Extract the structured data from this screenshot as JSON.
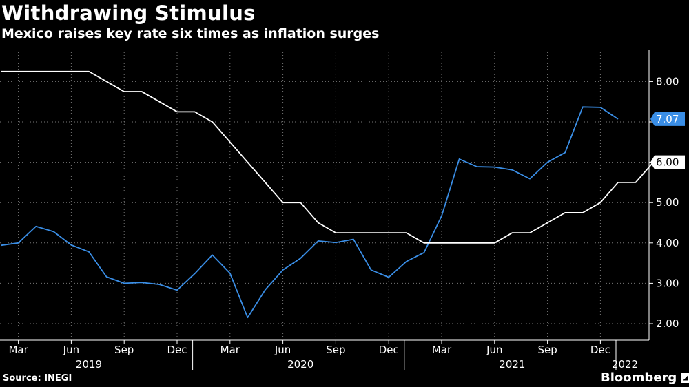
{
  "header": {
    "title": "Withdrawing Stimulus",
    "subtitle": "Mexico raises key rate six times as inflation surges"
  },
  "footer": {
    "source": "Source: INEGI",
    "logo": "Bloomberg"
  },
  "colors": {
    "background": "#000000",
    "inflation": "#3a8ee6",
    "rate": "#ffffff",
    "grid": "#666666"
  },
  "chart_data": {
    "type": "line",
    "title": "Withdrawing Stimulus",
    "subtitle": "Mexico raises key rate six times as inflation surges",
    "x_start": "2019-02",
    "x_end": "2022-02",
    "ylim": [
      1.7,
      8.8
    ],
    "yticks": [
      "2.00",
      "3.00",
      "4.00",
      "5.00",
      "6.00",
      "7.00",
      "8.00"
    ],
    "grid": true,
    "month_ticks": [
      "Mar",
      "Jun",
      "Sep",
      "Dec",
      "Mar",
      "Jun",
      "Sep",
      "Dec",
      "Mar",
      "Jun",
      "Sep",
      "Dec"
    ],
    "month_tick_dates": [
      "2019-03",
      "2019-06",
      "2019-09",
      "2019-12",
      "2020-03",
      "2020-06",
      "2020-09",
      "2020-12",
      "2021-03",
      "2021-06",
      "2021-09",
      "2021-12"
    ],
    "year_labels": [
      "2019",
      "2020",
      "2021",
      "2022"
    ],
    "year_label_dates": [
      "2019-07",
      "2020-07",
      "2021-07",
      "2022-01"
    ],
    "series": [
      {
        "color": "#3a8ee6",
        "last_label": "7.07",
        "x": [
          "2019-02",
          "2019-03",
          "2019-04",
          "2019-05",
          "2019-06",
          "2019-07",
          "2019-08",
          "2019-09",
          "2019-10",
          "2019-11",
          "2019-12",
          "2020-01",
          "2020-02",
          "2020-03",
          "2020-04",
          "2020-05",
          "2020-06",
          "2020-07",
          "2020-08",
          "2020-09",
          "2020-10",
          "2020-11",
          "2020-12",
          "2021-01",
          "2021-02",
          "2021-03",
          "2021-04",
          "2021-05",
          "2021-06",
          "2021-07",
          "2021-08",
          "2021-09",
          "2021-10",
          "2021-11",
          "2021-12",
          "2022-01"
        ],
        "values": [
          3.94,
          4.0,
          4.41,
          4.28,
          3.95,
          3.78,
          3.16,
          3.0,
          3.02,
          2.97,
          2.83,
          3.24,
          3.7,
          3.25,
          2.15,
          2.84,
          3.33,
          3.62,
          4.05,
          4.01,
          4.09,
          3.33,
          3.15,
          3.54,
          3.76,
          4.67,
          6.08,
          5.89,
          5.88,
          5.81,
          5.59,
          6.0,
          6.24,
          7.37,
          7.36,
          7.07
        ]
      },
      {
        "color": "#ffffff",
        "last_label": "6.00",
        "x": [
          "2019-02",
          "2019-03",
          "2019-04",
          "2019-05",
          "2019-06",
          "2019-07",
          "2019-08",
          "2019-09",
          "2019-10",
          "2019-11",
          "2019-12",
          "2020-01",
          "2020-02",
          "2020-03",
          "2020-04",
          "2020-05",
          "2020-06",
          "2020-07",
          "2020-08",
          "2020-09",
          "2020-10",
          "2020-11",
          "2020-12",
          "2021-01",
          "2021-02",
          "2021-03",
          "2021-04",
          "2021-05",
          "2021-06",
          "2021-07",
          "2021-08",
          "2021-09",
          "2021-10",
          "2021-11",
          "2021-12",
          "2022-01",
          "2022-02"
        ],
        "values": [
          8.25,
          8.25,
          8.25,
          8.25,
          8.25,
          8.25,
          8.0,
          7.75,
          7.75,
          7.5,
          7.25,
          7.25,
          7.0,
          6.5,
          6.0,
          5.5,
          5.0,
          5.0,
          4.5,
          4.25,
          4.25,
          4.25,
          4.25,
          4.25,
          4.0,
          4.0,
          4.0,
          4.0,
          4.0,
          4.25,
          4.25,
          4.5,
          4.75,
          4.75,
          5.0,
          5.5,
          5.5
        ]
      }
    ],
    "rate_extra": {
      "x": "2022-03",
      "value": 6.0
    }
  }
}
